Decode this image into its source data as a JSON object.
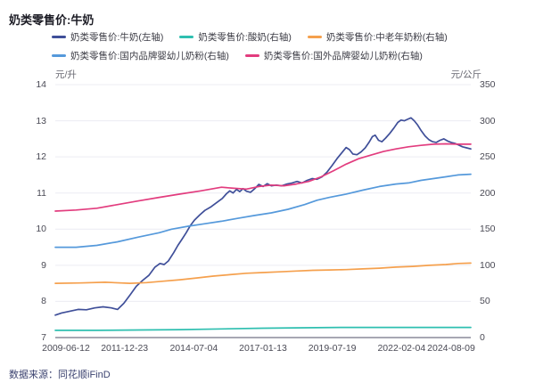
{
  "header": {
    "title": "奶类零售价:牛奶"
  },
  "source": {
    "label": "数据来源：同花顺iFinD"
  },
  "chart_data": {
    "type": "line",
    "title": "奶类零售价:牛奶",
    "grid": true,
    "legend_position": "top",
    "x_tick_labels": [
      "2009-06-12",
      "2011-12-23",
      "2014-07-04",
      "2017-01-13",
      "2019-07-19",
      "2022-02-04",
      "2024-08-09"
    ],
    "left_axis": {
      "unit": "元/升",
      "range": [
        7,
        14
      ],
      "ticks": [
        "14",
        "13",
        "12",
        "11",
        "10",
        "9",
        "8",
        "7"
      ]
    },
    "right_axis": {
      "unit": "元/公斤",
      "range": [
        0,
        350
      ],
      "ticks": [
        "350",
        "300",
        "250",
        "200",
        "150",
        "100",
        "50",
        "0"
      ]
    },
    "axis_line_color": "#a7a7b3",
    "grid_color": "#ececf3",
    "series": [
      {
        "name": "奶类零售价:牛奶(左轴)",
        "axis": "left",
        "color": "#3f4f99",
        "points": [
          [
            0.0,
            7.62
          ],
          [
            0.015,
            7.68
          ],
          [
            0.035,
            7.73
          ],
          [
            0.055,
            7.78
          ],
          [
            0.075,
            7.77
          ],
          [
            0.095,
            7.82
          ],
          [
            0.115,
            7.85
          ],
          [
            0.135,
            7.82
          ],
          [
            0.15,
            7.78
          ],
          [
            0.165,
            7.95
          ],
          [
            0.18,
            8.18
          ],
          [
            0.195,
            8.42
          ],
          [
            0.21,
            8.58
          ],
          [
            0.225,
            8.72
          ],
          [
            0.24,
            8.95
          ],
          [
            0.252,
            9.05
          ],
          [
            0.262,
            9.02
          ],
          [
            0.272,
            9.12
          ],
          [
            0.285,
            9.35
          ],
          [
            0.295,
            9.55
          ],
          [
            0.305,
            9.72
          ],
          [
            0.315,
            9.9
          ],
          [
            0.325,
            10.1
          ],
          [
            0.335,
            10.25
          ],
          [
            0.348,
            10.4
          ],
          [
            0.36,
            10.52
          ],
          [
            0.375,
            10.62
          ],
          [
            0.39,
            10.75
          ],
          [
            0.402,
            10.85
          ],
          [
            0.412,
            10.98
          ],
          [
            0.42,
            11.06
          ],
          [
            0.428,
            11.0
          ],
          [
            0.436,
            11.1
          ],
          [
            0.444,
            11.04
          ],
          [
            0.452,
            11.12
          ],
          [
            0.46,
            11.05
          ],
          [
            0.47,
            11.02
          ],
          [
            0.48,
            11.12
          ],
          [
            0.49,
            11.24
          ],
          [
            0.5,
            11.18
          ],
          [
            0.51,
            11.26
          ],
          [
            0.52,
            11.2
          ],
          [
            0.532,
            11.22
          ],
          [
            0.545,
            11.2
          ],
          [
            0.558,
            11.25
          ],
          [
            0.57,
            11.28
          ],
          [
            0.582,
            11.32
          ],
          [
            0.594,
            11.28
          ],
          [
            0.606,
            11.35
          ],
          [
            0.618,
            11.4
          ],
          [
            0.63,
            11.38
          ],
          [
            0.642,
            11.45
          ],
          [
            0.654,
            11.58
          ],
          [
            0.666,
            11.76
          ],
          [
            0.678,
            11.95
          ],
          [
            0.69,
            12.12
          ],
          [
            0.7,
            12.26
          ],
          [
            0.708,
            12.2
          ],
          [
            0.716,
            12.08
          ],
          [
            0.726,
            12.06
          ],
          [
            0.736,
            12.14
          ],
          [
            0.746,
            12.25
          ],
          [
            0.755,
            12.4
          ],
          [
            0.763,
            12.56
          ],
          [
            0.77,
            12.6
          ],
          [
            0.778,
            12.46
          ],
          [
            0.786,
            12.42
          ],
          [
            0.795,
            12.52
          ],
          [
            0.805,
            12.65
          ],
          [
            0.815,
            12.8
          ],
          [
            0.824,
            12.95
          ],
          [
            0.832,
            13.02
          ],
          [
            0.84,
            13.0
          ],
          [
            0.848,
            13.04
          ],
          [
            0.856,
            13.08
          ],
          [
            0.864,
            13.0
          ],
          [
            0.872,
            12.88
          ],
          [
            0.881,
            12.72
          ],
          [
            0.89,
            12.58
          ],
          [
            0.899,
            12.48
          ],
          [
            0.908,
            12.42
          ],
          [
            0.917,
            12.4
          ],
          [
            0.926,
            12.46
          ],
          [
            0.935,
            12.5
          ],
          [
            0.944,
            12.44
          ],
          [
            0.953,
            12.4
          ],
          [
            0.962,
            12.37
          ],
          [
            0.971,
            12.33
          ],
          [
            0.98,
            12.28
          ],
          [
            0.99,
            12.25
          ],
          [
            1.0,
            12.22
          ]
        ]
      },
      {
        "name": "奶类零售价:酸奶(右轴)",
        "axis": "right",
        "color": "#2fbfb0",
        "points": [
          [
            0.0,
            10
          ],
          [
            0.1,
            10
          ],
          [
            0.2,
            10.5
          ],
          [
            0.3,
            11
          ],
          [
            0.4,
            12
          ],
          [
            0.5,
            13
          ],
          [
            0.6,
            13.5
          ],
          [
            0.7,
            14
          ],
          [
            0.8,
            14
          ],
          [
            0.9,
            14
          ],
          [
            1.0,
            14
          ]
        ]
      },
      {
        "name": "奶类零售价:中老年奶粉(右轴)",
        "axis": "right",
        "color": "#f5a04d",
        "points": [
          [
            0.0,
            75
          ],
          [
            0.06,
            75.5
          ],
          [
            0.12,
            76.5
          ],
          [
            0.18,
            75
          ],
          [
            0.22,
            76
          ],
          [
            0.26,
            78
          ],
          [
            0.3,
            80
          ],
          [
            0.34,
            82.5
          ],
          [
            0.38,
            85
          ],
          [
            0.42,
            87
          ],
          [
            0.46,
            89
          ],
          [
            0.5,
            90
          ],
          [
            0.54,
            91
          ],
          [
            0.58,
            92
          ],
          [
            0.62,
            93
          ],
          [
            0.66,
            93.5
          ],
          [
            0.7,
            94
          ],
          [
            0.74,
            95
          ],
          [
            0.78,
            96
          ],
          [
            0.82,
            97.5
          ],
          [
            0.86,
            98.5
          ],
          [
            0.9,
            100
          ],
          [
            0.94,
            101
          ],
          [
            0.97,
            102.5
          ],
          [
            1.0,
            103
          ]
        ]
      },
      {
        "name": "奶类零售价:国内品牌婴幼儿奶粉(右轴)",
        "axis": "right",
        "color": "#5599db",
        "points": [
          [
            0.0,
            125
          ],
          [
            0.05,
            125
          ],
          [
            0.1,
            127.5
          ],
          [
            0.15,
            132.5
          ],
          [
            0.2,
            139
          ],
          [
            0.25,
            145
          ],
          [
            0.28,
            150
          ],
          [
            0.32,
            154
          ],
          [
            0.36,
            157.5
          ],
          [
            0.4,
            161
          ],
          [
            0.44,
            165
          ],
          [
            0.48,
            169
          ],
          [
            0.52,
            172.5
          ],
          [
            0.56,
            177.5
          ],
          [
            0.6,
            184
          ],
          [
            0.63,
            190
          ],
          [
            0.66,
            194
          ],
          [
            0.7,
            198.5
          ],
          [
            0.74,
            204
          ],
          [
            0.78,
            209
          ],
          [
            0.82,
            212.5
          ],
          [
            0.85,
            214
          ],
          [
            0.88,
            217.5
          ],
          [
            0.91,
            220
          ],
          [
            0.94,
            222.5
          ],
          [
            0.97,
            225
          ],
          [
            1.0,
            226
          ]
        ]
      },
      {
        "name": "奶类零售价:国外品牌婴幼儿奶粉(右轴)",
        "axis": "right",
        "color": "#e23c7e",
        "points": [
          [
            0.0,
            175
          ],
          [
            0.05,
            176.5
          ],
          [
            0.1,
            179
          ],
          [
            0.15,
            184
          ],
          [
            0.2,
            189
          ],
          [
            0.25,
            194
          ],
          [
            0.3,
            198.5
          ],
          [
            0.35,
            203
          ],
          [
            0.4,
            208
          ],
          [
            0.43,
            206.5
          ],
          [
            0.46,
            205.5
          ],
          [
            0.49,
            209
          ],
          [
            0.52,
            211
          ],
          [
            0.55,
            210
          ],
          [
            0.58,
            212.5
          ],
          [
            0.61,
            216
          ],
          [
            0.64,
            222.5
          ],
          [
            0.67,
            231
          ],
          [
            0.7,
            240
          ],
          [
            0.73,
            247.5
          ],
          [
            0.76,
            252.5
          ],
          [
            0.79,
            257.5
          ],
          [
            0.82,
            261
          ],
          [
            0.85,
            264
          ],
          [
            0.88,
            266
          ],
          [
            0.91,
            267.5
          ],
          [
            0.94,
            268
          ],
          [
            0.97,
            267.5
          ],
          [
            1.0,
            267.5
          ]
        ]
      }
    ]
  }
}
